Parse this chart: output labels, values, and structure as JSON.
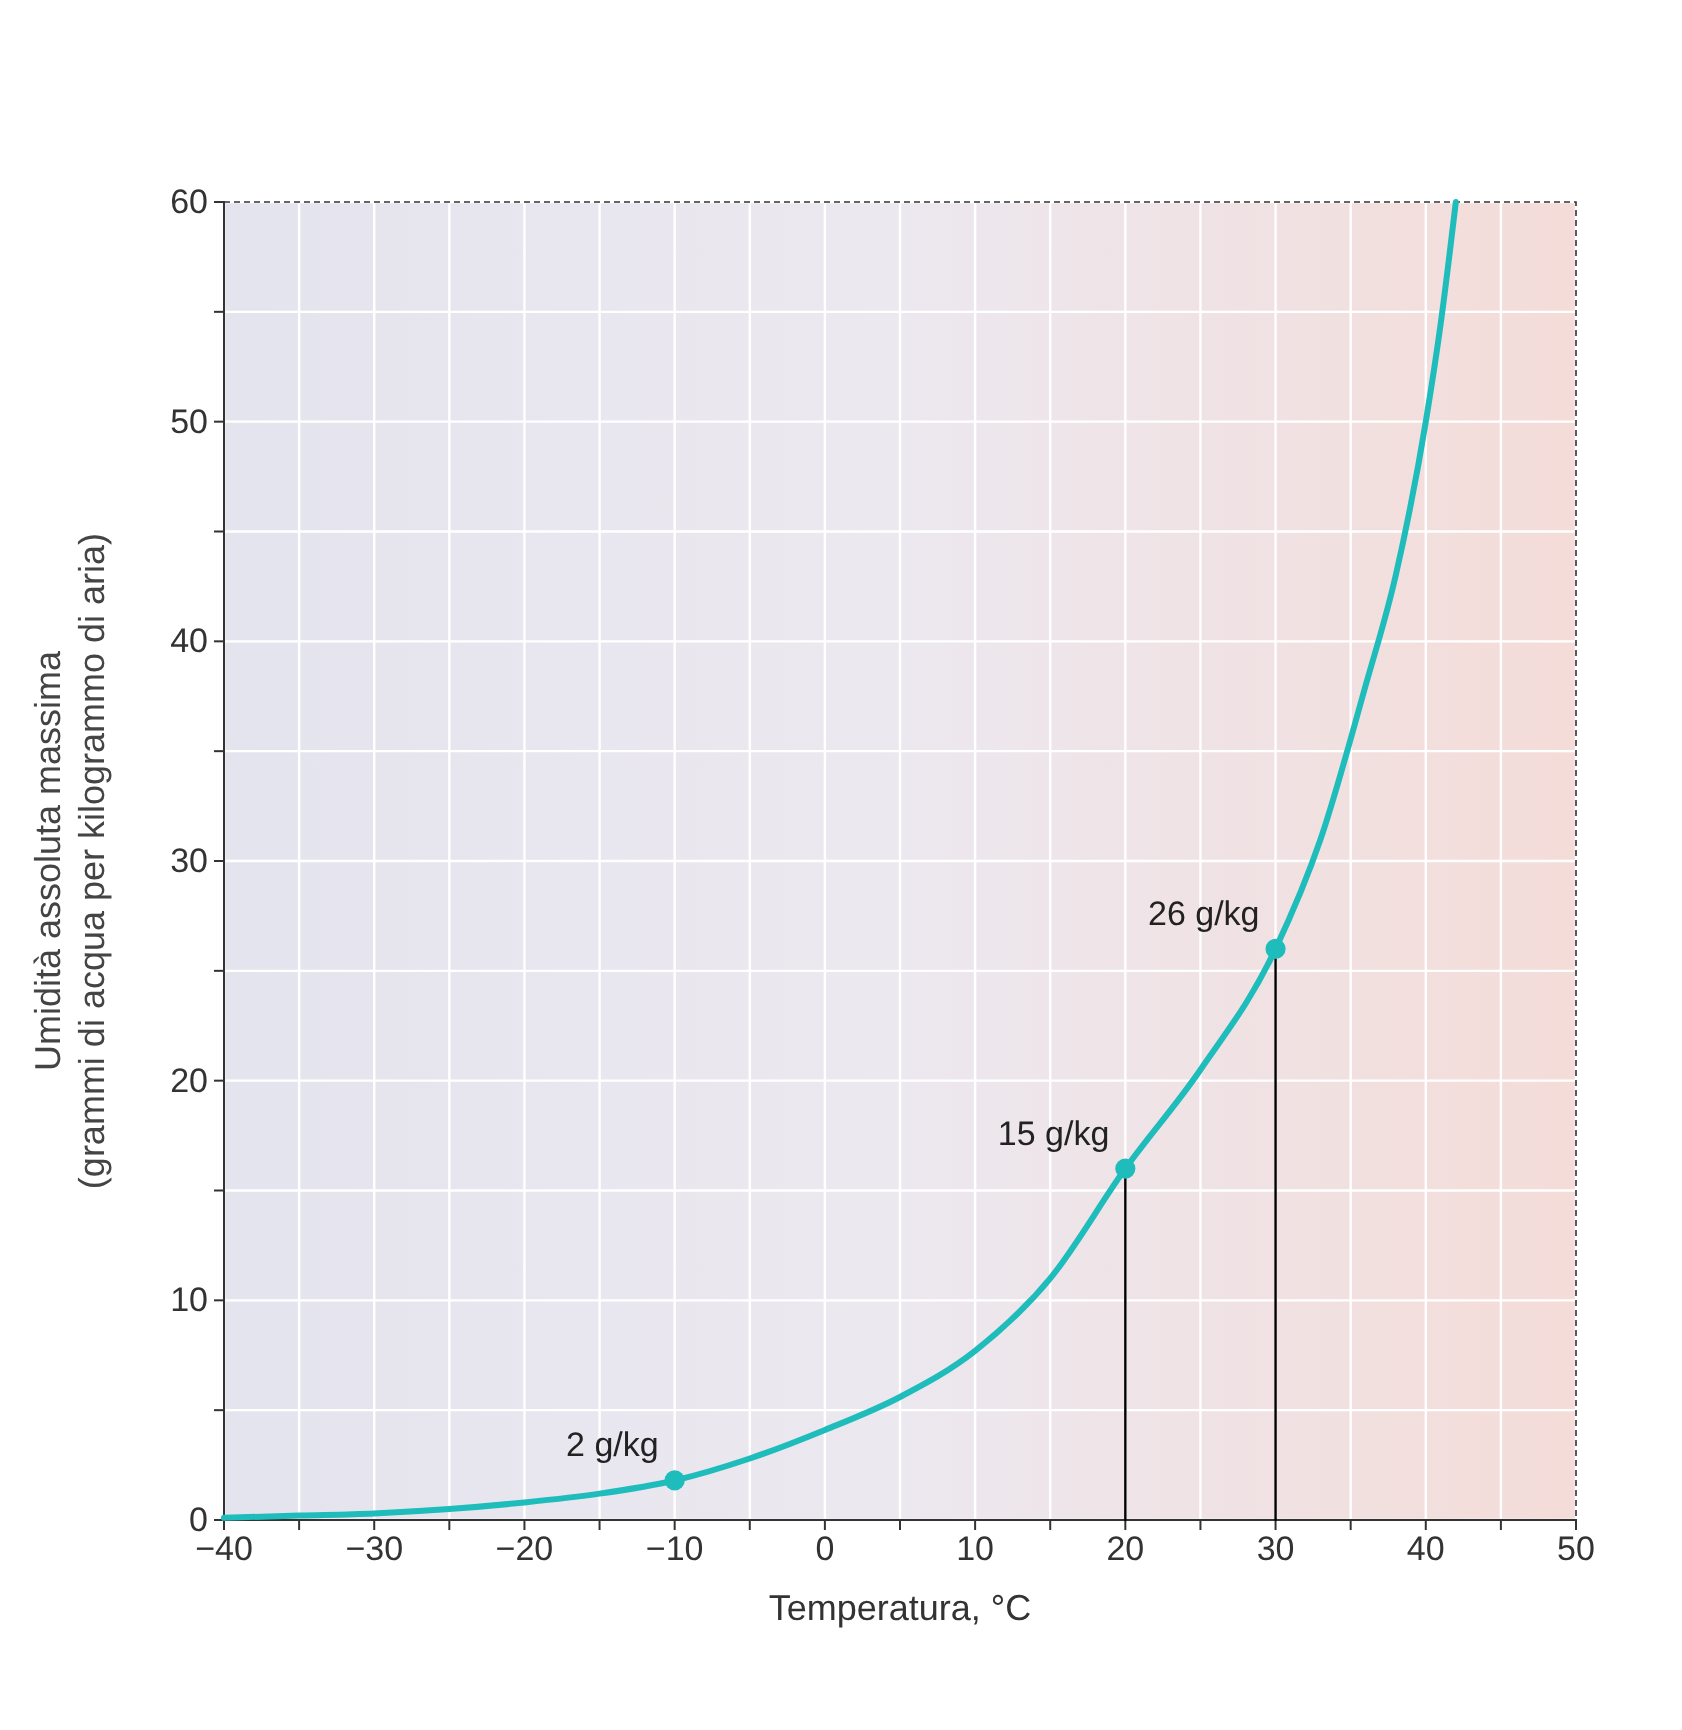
{
  "chart_data": {
    "type": "line",
    "xlabel": "Temperatura, °C",
    "ylabel": "Umidità assoluta massima\n(grammi di acqua per kilogrammo di aria)",
    "xlim": [
      -40,
      50
    ],
    "ylim": [
      0,
      60
    ],
    "xticks": [
      -40,
      {
        "value": -35,
        "label": null
      },
      -30,
      {
        "value": -25,
        "label": null
      },
      -20,
      {
        "value": -15,
        "label": null
      },
      -10,
      {
        "value": -5,
        "label": null
      },
      0,
      {
        "value": 5,
        "label": null
      },
      10,
      {
        "value": 15,
        "label": null
      },
      20,
      {
        "value": 25,
        "label": null
      },
      30,
      {
        "value": 35,
        "label": null
      },
      40,
      {
        "value": 45,
        "label": null
      },
      50
    ],
    "yticks": [
      0,
      {
        "value": 5,
        "label": null
      },
      10,
      {
        "value": 15,
        "label": null
      },
      20,
      {
        "value": 25,
        "label": null
      },
      30,
      {
        "value": 35,
        "label": null
      },
      40,
      {
        "value": 45,
        "label": null
      },
      50,
      {
        "value": 55,
        "label": null
      },
      60
    ],
    "grid": true,
    "series": [
      {
        "color": "#1fbcbc",
        "x": [
          -40,
          -35,
          -30,
          -25,
          -20,
          -15,
          -10,
          -5,
          0,
          5,
          10,
          15,
          20,
          25,
          30,
          33,
          36,
          38,
          40,
          41,
          42
        ],
        "values": [
          0.1,
          0.2,
          0.3,
          0.5,
          0.8,
          1.2,
          1.8,
          2.8,
          4.1,
          5.6,
          7.7,
          11,
          16,
          20.5,
          26,
          31,
          38,
          43,
          50,
          54.5,
          60
        ]
      },
      {
        "color": "#000000",
        "x": [
          20,
          20
        ],
        "values": [
          0,
          16
        ]
      },
      {
        "color": "#000000",
        "x": [
          30,
          30
        ],
        "values": [
          0,
          26
        ]
      },
      {
        "type": "scatter",
        "color": "#1fbcbc",
        "marker": "circle",
        "x": [
          -10,
          20,
          30
        ],
        "values": [
          1.8,
          16,
          26
        ]
      }
    ],
    "annotations": [
      {
        "text": "2 g/kg",
        "x": -10,
        "y": 1.8
      },
      {
        "text": "15 g/kg",
        "x": 20,
        "y": 16
      },
      {
        "text": "26 g/kg",
        "x": 30,
        "y": 26
      }
    ]
  }
}
